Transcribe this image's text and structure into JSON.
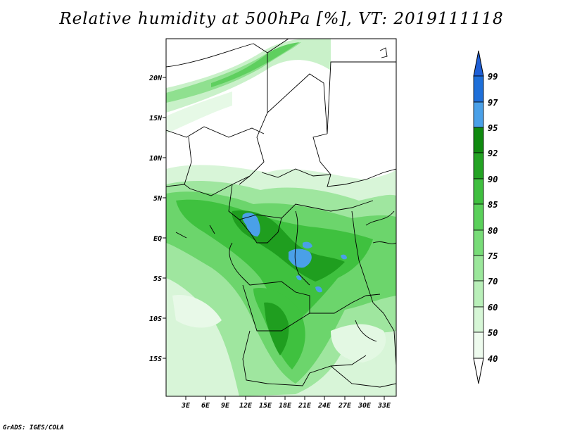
{
  "title": "Relative humidity at 500hPa [%], VT: 2019111118",
  "credit": "GrADS: IGES/COLA",
  "map": {
    "lat_labels": [
      "20N",
      "15N",
      "10N",
      "5N",
      "EQ",
      "5S",
      "10S",
      "15S"
    ],
    "lon_labels": [
      "3E",
      "6E",
      "9E",
      "12E",
      "15E",
      "18E",
      "21E",
      "24E",
      "27E",
      "30E",
      "33E"
    ]
  },
  "colorbar": {
    "levels": [
      "99",
      "97",
      "95",
      "92",
      "90",
      "85",
      "80",
      "75",
      "70",
      "60",
      "50",
      "40"
    ],
    "colors": [
      "#1e5fd6",
      "#1e6fd9",
      "#4aa0e8",
      "#0f8a0f",
      "#23a323",
      "#3fbf3f",
      "#5ad05a",
      "#78dc78",
      "#9be79b",
      "#b9efb9",
      "#d6f6d6",
      "#eefbee",
      "#ffffff"
    ]
  }
}
